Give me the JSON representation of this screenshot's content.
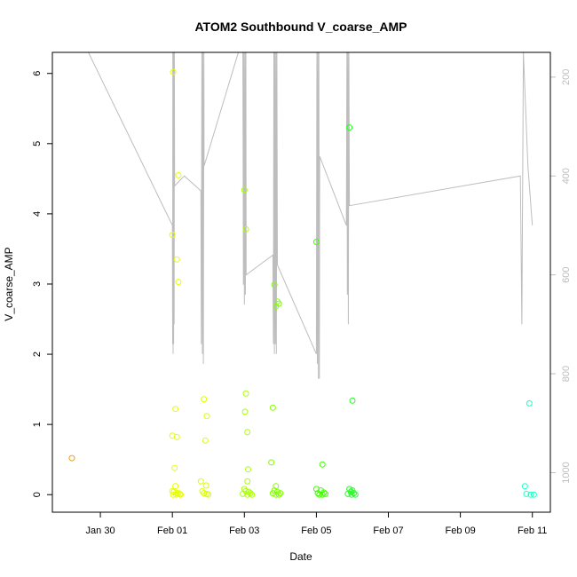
{
  "chart_data": {
    "type": "scatter",
    "title": "ATOM2 Southbound V_coarse_AMP",
    "xlabel": "Date",
    "ylabel": "V_coarse_AMP",
    "xlim": [
      "2024-01-28T16:00",
      "2024-02-11T12:00"
    ],
    "ylim": [
      -0.25,
      6.3
    ],
    "y2lim": [
      1080,
      150
    ],
    "x_tick_labels": [
      "Jan 30",
      "Feb 01",
      "Feb 03",
      "Feb 05",
      "Feb 07",
      "Feb 09",
      "Feb 11"
    ],
    "x_tick_dates": [
      "2024-01-30",
      "2024-02-01",
      "2024-02-03",
      "2024-02-05",
      "2024-02-07",
      "2024-02-09",
      "2024-02-11"
    ],
    "y_ticks": [
      0,
      1,
      2,
      3,
      4,
      5,
      6
    ],
    "y2_ticks": [
      200,
      400,
      600,
      800,
      1000
    ],
    "grid": false,
    "legend": "none",
    "point_color_note": "colored by date (orange → yellow → green → cyan)",
    "colors": {
      "depth_line": "#bdbdbd",
      "axis": "#000000",
      "y2_axis": "#bdbdbd"
    },
    "points": [
      {
        "x": "2024-01-29T05:00",
        "y": 0.52,
        "color": "#e8a020"
      },
      {
        "x": "2024-02-01T00:30",
        "y": 6.02,
        "color": "#e6ff00"
      },
      {
        "x": "2024-02-01T04:00",
        "y": 4.55,
        "color": "#e6ff00"
      },
      {
        "x": "2024-02-01T00:00",
        "y": 3.7,
        "color": "#e6ff00"
      },
      {
        "x": "2024-02-01T03:00",
        "y": 3.35,
        "color": "#e6ff00"
      },
      {
        "x": "2024-02-01T04:00",
        "y": 3.03,
        "color": "#e6ff00"
      },
      {
        "x": "2024-02-01T02:00",
        "y": 1.22,
        "color": "#e6ff00"
      },
      {
        "x": "2024-02-01T00:00",
        "y": 0.84,
        "color": "#e6ff00"
      },
      {
        "x": "2024-02-01T03:00",
        "y": 0.82,
        "color": "#e6ff00"
      },
      {
        "x": "2024-02-01T01:30",
        "y": 0.38,
        "color": "#e6ff00"
      },
      {
        "x": "2024-02-01T02:00",
        "y": 0.12,
        "color": "#e6ff00"
      },
      {
        "x": "2024-02-01T00:00",
        "y": 0.05,
        "color": "#e6ff00"
      },
      {
        "x": "2024-02-01T01:00",
        "y": 0.04,
        "color": "#e6ff00"
      },
      {
        "x": "2024-02-01T03:00",
        "y": 0.02,
        "color": "#e6ff00"
      },
      {
        "x": "2024-02-01T04:00",
        "y": 0.02,
        "color": "#e6ff00"
      },
      {
        "x": "2024-02-01T05:00",
        "y": 0.01,
        "color": "#e6ff00"
      },
      {
        "x": "2024-02-01T00:30",
        "y": 0.0,
        "color": "#e6ff00"
      },
      {
        "x": "2024-02-01T02:30",
        "y": 0.0,
        "color": "#e6ff00"
      },
      {
        "x": "2024-02-01T05:30",
        "y": 0.0,
        "color": "#e6ff00"
      },
      {
        "x": "2024-02-01T21:00",
        "y": 1.36,
        "color": "#d8ff00"
      },
      {
        "x": "2024-02-01T23:00",
        "y": 1.12,
        "color": "#d8ff00"
      },
      {
        "x": "2024-02-01T22:00",
        "y": 0.77,
        "color": "#d8ff00"
      },
      {
        "x": "2024-02-01T19:00",
        "y": 0.19,
        "color": "#d8ff00"
      },
      {
        "x": "2024-02-01T22:30",
        "y": 0.13,
        "color": "#d8ff00"
      },
      {
        "x": "2024-02-01T20:00",
        "y": 0.05,
        "color": "#d8ff00"
      },
      {
        "x": "2024-02-01T21:00",
        "y": 0.02,
        "color": "#d8ff00"
      },
      {
        "x": "2024-02-01T23:00",
        "y": 0.01,
        "color": "#d8ff00"
      },
      {
        "x": "2024-02-02T00:00",
        "y": 0.0,
        "color": "#d8ff00"
      },
      {
        "x": "2024-02-03T00:00",
        "y": 4.34,
        "color": "#a8ff00"
      },
      {
        "x": "2024-02-03T01:00",
        "y": 3.78,
        "color": "#a8ff00"
      },
      {
        "x": "2024-02-03T01:00",
        "y": 1.44,
        "color": "#a8ff00"
      },
      {
        "x": "2024-02-03T00:30",
        "y": 1.18,
        "color": "#a8ff00"
      },
      {
        "x": "2024-02-03T02:00",
        "y": 0.89,
        "color": "#a8ff00"
      },
      {
        "x": "2024-02-03T02:30",
        "y": 0.36,
        "color": "#a8ff00"
      },
      {
        "x": "2024-02-03T02:00",
        "y": 0.19,
        "color": "#a8ff00"
      },
      {
        "x": "2024-02-03T00:00",
        "y": 0.08,
        "color": "#a8ff00"
      },
      {
        "x": "2024-02-03T01:00",
        "y": 0.05,
        "color": "#a8ff00"
      },
      {
        "x": "2024-02-03T03:00",
        "y": 0.04,
        "color": "#a8ff00"
      },
      {
        "x": "2024-02-03T04:00",
        "y": 0.02,
        "color": "#a8ff00"
      },
      {
        "x": "2024-02-02T23:00",
        "y": 0.01,
        "color": "#a8ff00"
      },
      {
        "x": "2024-02-03T02:00",
        "y": 0.0,
        "color": "#a8ff00"
      },
      {
        "x": "2024-02-03T05:00",
        "y": 0.0,
        "color": "#a8ff00"
      },
      {
        "x": "2024-02-03T20:00",
        "y": 2.99,
        "color": "#80ff00"
      },
      {
        "x": "2024-02-03T22:00",
        "y": 2.75,
        "color": "#80ff00"
      },
      {
        "x": "2024-02-03T21:00",
        "y": 2.68,
        "color": "#80ff00"
      },
      {
        "x": "2024-02-03T23:00",
        "y": 2.72,
        "color": "#80ff00"
      },
      {
        "x": "2024-02-03T19:00",
        "y": 1.24,
        "color": "#80ff00"
      },
      {
        "x": "2024-02-03T18:00",
        "y": 0.46,
        "color": "#80ff00"
      },
      {
        "x": "2024-02-03T21:00",
        "y": 0.12,
        "color": "#80ff00"
      },
      {
        "x": "2024-02-03T20:00",
        "y": 0.06,
        "color": "#80ff00"
      },
      {
        "x": "2024-02-03T22:00",
        "y": 0.04,
        "color": "#80ff00"
      },
      {
        "x": "2024-02-03T19:00",
        "y": 0.02,
        "color": "#80ff00"
      },
      {
        "x": "2024-02-04T00:00",
        "y": 0.02,
        "color": "#80ff00"
      },
      {
        "x": "2024-02-03T21:00",
        "y": 0.0,
        "color": "#80ff00"
      },
      {
        "x": "2024-02-03T23:00",
        "y": 0.0,
        "color": "#80ff00"
      },
      {
        "x": "2024-02-05T00:00",
        "y": 3.6,
        "color": "#40ff00"
      },
      {
        "x": "2024-02-05T04:00",
        "y": 0.43,
        "color": "#40ff00"
      },
      {
        "x": "2024-02-05T00:00",
        "y": 0.08,
        "color": "#40ff00"
      },
      {
        "x": "2024-02-05T03:00",
        "y": 0.06,
        "color": "#40ff00"
      },
      {
        "x": "2024-02-05T05:00",
        "y": 0.03,
        "color": "#40ff00"
      },
      {
        "x": "2024-02-05T01:00",
        "y": 0.02,
        "color": "#40ff00"
      },
      {
        "x": "2024-02-05T06:00",
        "y": 0.01,
        "color": "#40ff00"
      },
      {
        "x": "2024-02-05T02:00",
        "y": 0.0,
        "color": "#40ff00"
      },
      {
        "x": "2024-02-05T04:00",
        "y": 0.0,
        "color": "#40ff00"
      },
      {
        "x": "2024-02-05T22:00",
        "y": 5.23,
        "color": "#20ff20"
      },
      {
        "x": "2024-02-06T00:00",
        "y": 1.34,
        "color": "#20ff20"
      },
      {
        "x": "2024-02-05T22:00",
        "y": 0.08,
        "color": "#20ff20"
      },
      {
        "x": "2024-02-06T00:00",
        "y": 0.06,
        "color": "#20ff20"
      },
      {
        "x": "2024-02-05T23:00",
        "y": 0.04,
        "color": "#20ff20"
      },
      {
        "x": "2024-02-06T01:00",
        "y": 0.02,
        "color": "#20ff20"
      },
      {
        "x": "2024-02-05T21:00",
        "y": 0.01,
        "color": "#20ff20"
      },
      {
        "x": "2024-02-06T02:00",
        "y": 0.0,
        "color": "#20ff20"
      },
      {
        "x": "2024-02-05T23:30",
        "y": 0.0,
        "color": "#20ff20"
      },
      {
        "x": "2024-02-10T22:00",
        "y": 1.3,
        "color": "#20ffc0"
      },
      {
        "x": "2024-02-10T19:00",
        "y": 0.12,
        "color": "#20ffc0"
      },
      {
        "x": "2024-02-10T20:00",
        "y": 0.01,
        "color": "#20ffc0"
      },
      {
        "x": "2024-02-10T23:00",
        "y": 0.0,
        "color": "#20ffc0"
      },
      {
        "x": "2024-02-11T01:00",
        "y": 0.0,
        "color": "#20ffc0"
      }
    ],
    "depth_trace": [
      {
        "x": "2024-01-29T16:00",
        "d": 150
      },
      {
        "x": "2024-02-01T00:00",
        "d": 500
      },
      {
        "x": "2024-02-01T00:10",
        "d": 740
      },
      {
        "x": "2024-02-01T00:20",
        "d": 150
      },
      {
        "x": "2024-02-01T00:30",
        "d": 760
      },
      {
        "x": "2024-02-01T00:40",
        "d": 150
      },
      {
        "x": "2024-02-01T00:50",
        "d": 740
      },
      {
        "x": "2024-02-01T01:00",
        "d": 150
      },
      {
        "x": "2024-02-01T01:10",
        "d": 700
      },
      {
        "x": "2024-02-01T01:20",
        "d": 150
      },
      {
        "x": "2024-02-01T01:30",
        "d": 420
      },
      {
        "x": "2024-02-01T08:00",
        "d": 400
      },
      {
        "x": "2024-02-01T19:00",
        "d": 430
      },
      {
        "x": "2024-02-01T19:20",
        "d": 740
      },
      {
        "x": "2024-02-01T19:40",
        "d": 150
      },
      {
        "x": "2024-02-01T20:00",
        "d": 760
      },
      {
        "x": "2024-02-01T20:20",
        "d": 150
      },
      {
        "x": "2024-02-01T20:40",
        "d": 780
      },
      {
        "x": "2024-02-01T21:00",
        "d": 150
      },
      {
        "x": "2024-02-01T21:10",
        "d": 380
      },
      {
        "x": "2024-02-02T20:00",
        "d": 150
      },
      {
        "x": "2024-02-02T23:00",
        "d": 150
      },
      {
        "x": "2024-02-02T23:20",
        "d": 620
      },
      {
        "x": "2024-02-02T23:40",
        "d": 150
      },
      {
        "x": "2024-02-03T00:00",
        "d": 660
      },
      {
        "x": "2024-02-03T00:20",
        "d": 150
      },
      {
        "x": "2024-02-03T00:40",
        "d": 640
      },
      {
        "x": "2024-02-03T01:00",
        "d": 150
      },
      {
        "x": "2024-02-03T01:10",
        "d": 600
      },
      {
        "x": "2024-02-03T19:00",
        "d": 560
      },
      {
        "x": "2024-02-03T19:20",
        "d": 740
      },
      {
        "x": "2024-02-03T19:40",
        "d": 150
      },
      {
        "x": "2024-02-03T20:00",
        "d": 760
      },
      {
        "x": "2024-02-03T20:20",
        "d": 150
      },
      {
        "x": "2024-02-03T20:40",
        "d": 740
      },
      {
        "x": "2024-02-03T21:00",
        "d": 150
      },
      {
        "x": "2024-02-03T21:20",
        "d": 760
      },
      {
        "x": "2024-02-03T21:40",
        "d": 150
      },
      {
        "x": "2024-02-03T22:00",
        "d": 580
      },
      {
        "x": "2024-02-05T00:00",
        "d": 760
      },
      {
        "x": "2024-02-05T00:20",
        "d": 150
      },
      {
        "x": "2024-02-05T00:40",
        "d": 780
      },
      {
        "x": "2024-02-05T01:00",
        "d": 150
      },
      {
        "x": "2024-02-05T01:20",
        "d": 810
      },
      {
        "x": "2024-02-05T01:40",
        "d": 150
      },
      {
        "x": "2024-02-05T02:00",
        "d": 810
      },
      {
        "x": "2024-02-05T02:10",
        "d": 360
      },
      {
        "x": "2024-02-05T20:00",
        "d": 500
      },
      {
        "x": "2024-02-05T20:20",
        "d": 150
      },
      {
        "x": "2024-02-05T20:40",
        "d": 640
      },
      {
        "x": "2024-02-05T21:00",
        "d": 150
      },
      {
        "x": "2024-02-05T21:20",
        "d": 700
      },
      {
        "x": "2024-02-05T21:40",
        "d": 150
      },
      {
        "x": "2024-02-05T22:00",
        "d": 460
      },
      {
        "x": "2024-02-10T16:00",
        "d": 400
      },
      {
        "x": "2024-02-10T17:00",
        "d": 700
      },
      {
        "x": "2024-02-10T18:00",
        "d": 150
      },
      {
        "x": "2024-02-10T21:00",
        "d": 380
      },
      {
        "x": "2024-02-11T00:00",
        "d": 500
      }
    ]
  }
}
